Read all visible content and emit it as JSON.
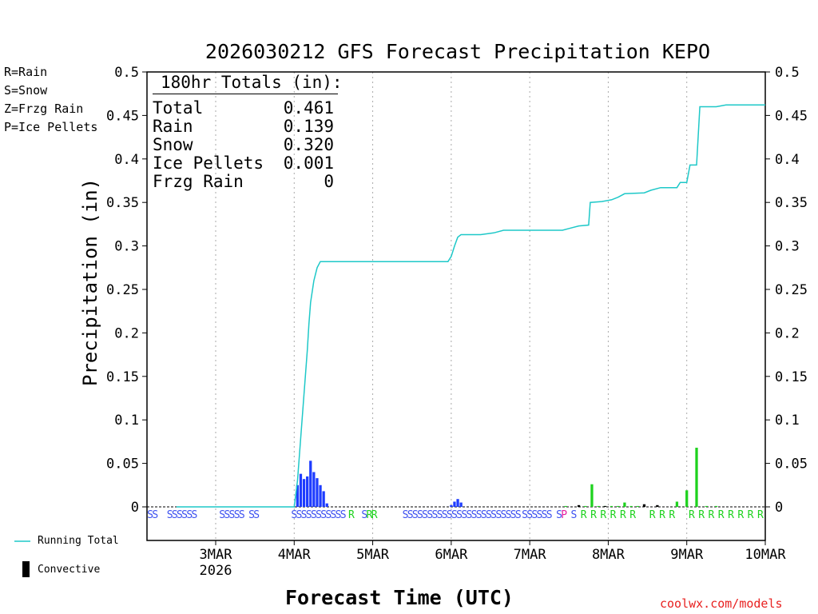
{
  "chart_data": {
    "type": "bar+line",
    "title": "2026030212 GFS Forecast Precipitation KEPO",
    "xlabel": "Forecast Time (UTC)",
    "ylabel": "Precipitation (in)",
    "ylim": [
      0,
      0.5
    ],
    "yticks": [
      "0",
      "0.05",
      "0.1",
      "0.15",
      "0.2",
      "0.25",
      "0.3",
      "0.35",
      "0.4",
      "0.45",
      "0.5"
    ],
    "x_unit": "forecast hour",
    "xlim": [
      -9,
      180
    ],
    "xticks": [
      {
        "hour": 12,
        "label": "3MAR",
        "sublabel": "2026"
      },
      {
        "hour": 36,
        "label": "4MAR"
      },
      {
        "hour": 60,
        "label": "5MAR"
      },
      {
        "hour": 84,
        "label": "6MAR"
      },
      {
        "hour": 108,
        "label": "7MAR"
      },
      {
        "hour": 132,
        "label": "8MAR"
      },
      {
        "hour": 156,
        "label": "9MAR"
      },
      {
        "hour": 180,
        "label": "10MAR"
      }
    ],
    "totals": {
      "header": "180hr Totals (in):",
      "rows": [
        {
          "label": "Total",
          "value": "0.461"
        },
        {
          "label": "Rain",
          "value": "0.139"
        },
        {
          "label": "Snow",
          "value": "0.320"
        },
        {
          "label": "Ice Pellets",
          "value": "0.001"
        },
        {
          "label": "Frzg Rain",
          "value": "0"
        }
      ]
    },
    "ptype_legend": [
      {
        "text": "R=Rain",
        "color": "#1ed21e"
      },
      {
        "text": "S=Snow",
        "color": "#3c50f0"
      },
      {
        "text": "Z=Frzg Rain",
        "color": "#f08c28"
      },
      {
        "text": "P=Ice Pellets",
        "color": "#e61ea0"
      }
    ],
    "series_legend": {
      "running_total": "Running Total",
      "convective": "Convective"
    },
    "colors": {
      "running_total": "#1ec8c8",
      "snow": "#1e3cff",
      "rain": "#1ed21e",
      "convective": "#000000",
      "ice": "#e61ea0"
    },
    "running_total": [
      [
        0,
        0
      ],
      [
        36,
        0
      ],
      [
        37,
        0.03
      ],
      [
        38,
        0.08
      ],
      [
        39,
        0.13
      ],
      [
        40,
        0.18
      ],
      [
        40.5,
        0.21
      ],
      [
        41,
        0.235
      ],
      [
        42,
        0.26
      ],
      [
        43,
        0.275
      ],
      [
        44,
        0.282
      ],
      [
        48,
        0.282
      ],
      [
        83,
        0.282
      ],
      [
        84,
        0.288
      ],
      [
        85,
        0.3
      ],
      [
        86,
        0.31
      ],
      [
        87,
        0.313
      ],
      [
        93,
        0.313
      ],
      [
        97,
        0.315
      ],
      [
        100,
        0.318
      ],
      [
        118,
        0.318
      ],
      [
        120,
        0.32
      ],
      [
        123,
        0.323
      ],
      [
        126,
        0.324
      ],
      [
        126.5,
        0.35
      ],
      [
        130,
        0.351
      ],
      [
        133,
        0.353
      ],
      [
        135,
        0.356
      ],
      [
        137,
        0.36
      ],
      [
        143,
        0.361
      ],
      [
        145,
        0.364
      ],
      [
        148,
        0.367
      ],
      [
        153,
        0.367
      ],
      [
        154,
        0.373
      ],
      [
        156,
        0.373
      ],
      [
        157,
        0.393
      ],
      [
        159,
        0.393
      ],
      [
        160,
        0.46
      ],
      [
        165,
        0.46
      ],
      [
        168,
        0.462
      ],
      [
        180,
        0.462
      ]
    ],
    "bars": {
      "snow": [
        [
          37,
          0.025
        ],
        [
          38,
          0.038
        ],
        [
          39,
          0.032
        ],
        [
          40,
          0.035
        ],
        [
          41,
          0.053
        ],
        [
          42,
          0.04
        ],
        [
          43,
          0.033
        ],
        [
          44,
          0.025
        ],
        [
          45,
          0.018
        ],
        [
          46,
          0.004
        ],
        [
          84,
          0.002
        ],
        [
          85,
          0.006
        ],
        [
          86,
          0.009
        ],
        [
          87,
          0.005
        ]
      ],
      "rain": [
        [
          119,
          0.001
        ],
        [
          123,
          0.001
        ],
        [
          125,
          0.001
        ],
        [
          127,
          0.026
        ],
        [
          129,
          0.001
        ],
        [
          131,
          0.001
        ],
        [
          133,
          0.001
        ],
        [
          135,
          0.001
        ],
        [
          137,
          0.005
        ],
        [
          139,
          0.001
        ],
        [
          141,
          0.001
        ],
        [
          153,
          0.006
        ],
        [
          156,
          0.019
        ],
        [
          159,
          0.068
        ],
        [
          162,
          0.001
        ],
        [
          165,
          0.001
        ]
      ],
      "convective": [
        [
          123,
          0.002
        ],
        [
          131,
          0.001
        ],
        [
          143,
          0.003
        ],
        [
          147,
          0.002
        ]
      ]
    },
    "ptype_markers": [
      {
        "hour": -8.0,
        "letter": "S"
      },
      {
        "hour": -6.5,
        "letter": "S"
      },
      {
        "hour": -2.0,
        "letter": "S"
      },
      {
        "hour": -0.5,
        "letter": "S"
      },
      {
        "hour": 1.0,
        "letter": "S"
      },
      {
        "hour": 2.5,
        "letter": "S"
      },
      {
        "hour": 4.0,
        "letter": "S"
      },
      {
        "hour": 5.5,
        "letter": "S"
      },
      {
        "hour": 14.0,
        "letter": "S"
      },
      {
        "hour": 15.5,
        "letter": "S"
      },
      {
        "hour": 17.0,
        "letter": "S"
      },
      {
        "hour": 18.5,
        "letter": "S"
      },
      {
        "hour": 20.0,
        "letter": "S"
      },
      {
        "hour": 23.0,
        "letter": "S"
      },
      {
        "hour": 24.5,
        "letter": "S"
      },
      {
        "hour": 36.0,
        "letter": "S"
      },
      {
        "hour": 37.5,
        "letter": "S"
      },
      {
        "hour": 39.0,
        "letter": "S"
      },
      {
        "hour": 40.5,
        "letter": "S"
      },
      {
        "hour": 42.0,
        "letter": "S"
      },
      {
        "hour": 43.5,
        "letter": "S"
      },
      {
        "hour": 45.0,
        "letter": "S"
      },
      {
        "hour": 46.5,
        "letter": "S"
      },
      {
        "hour": 48.0,
        "letter": "S"
      },
      {
        "hour": 49.5,
        "letter": "S"
      },
      {
        "hour": 51.0,
        "letter": "S"
      },
      {
        "hour": 53.5,
        "letter": "R"
      },
      {
        "hour": 57.5,
        "letter": "S"
      },
      {
        "hour": 59.0,
        "letter": "R"
      },
      {
        "hour": 60.5,
        "letter": "R"
      },
      {
        "hour": 70.0,
        "letter": "S"
      },
      {
        "hour": 71.5,
        "letter": "S"
      },
      {
        "hour": 73.0,
        "letter": "S"
      },
      {
        "hour": 74.5,
        "letter": "S"
      },
      {
        "hour": 76.0,
        "letter": "S"
      },
      {
        "hour": 77.5,
        "letter": "S"
      },
      {
        "hour": 79.0,
        "letter": "S"
      },
      {
        "hour": 80.5,
        "letter": "S"
      },
      {
        "hour": 82.0,
        "letter": "S"
      },
      {
        "hour": 83.5,
        "letter": "S"
      },
      {
        "hour": 85.0,
        "letter": "S"
      },
      {
        "hour": 86.5,
        "letter": "S"
      },
      {
        "hour": 88.0,
        "letter": "S"
      },
      {
        "hour": 89.5,
        "letter": "S"
      },
      {
        "hour": 91.0,
        "letter": "S"
      },
      {
        "hour": 92.5,
        "letter": "S"
      },
      {
        "hour": 94.0,
        "letter": "S"
      },
      {
        "hour": 95.5,
        "letter": "S"
      },
      {
        "hour": 97.0,
        "letter": "S"
      },
      {
        "hour": 98.5,
        "letter": "S"
      },
      {
        "hour": 100.0,
        "letter": "S"
      },
      {
        "hour": 101.5,
        "letter": "S"
      },
      {
        "hour": 103.0,
        "letter": "S"
      },
      {
        "hour": 104.5,
        "letter": "S"
      },
      {
        "hour": 106.5,
        "letter": "S"
      },
      {
        "hour": 108.0,
        "letter": "S"
      },
      {
        "hour": 109.5,
        "letter": "S"
      },
      {
        "hour": 111.0,
        "letter": "S"
      },
      {
        "hour": 112.5,
        "letter": "S"
      },
      {
        "hour": 114.0,
        "letter": "S"
      },
      {
        "hour": 117.0,
        "letter": "S"
      },
      {
        "hour": 118.5,
        "letter": "P"
      },
      {
        "hour": 121.5,
        "letter": "S"
      },
      {
        "hour": 124.5,
        "letter": "R"
      },
      {
        "hour": 127.5,
        "letter": "R"
      },
      {
        "hour": 130.5,
        "letter": "R"
      },
      {
        "hour": 133.5,
        "letter": "R"
      },
      {
        "hour": 136.5,
        "letter": "R"
      },
      {
        "hour": 139.5,
        "letter": "R"
      },
      {
        "hour": 145.5,
        "letter": "R"
      },
      {
        "hour": 148.5,
        "letter": "R"
      },
      {
        "hour": 151.5,
        "letter": "R"
      },
      {
        "hour": 157.5,
        "letter": "R"
      },
      {
        "hour": 160.5,
        "letter": "R"
      },
      {
        "hour": 163.5,
        "letter": "R"
      },
      {
        "hour": 166.5,
        "letter": "R"
      },
      {
        "hour": 169.5,
        "letter": "R"
      },
      {
        "hour": 172.5,
        "letter": "R"
      },
      {
        "hour": 175.5,
        "letter": "R"
      },
      {
        "hour": 178.5,
        "letter": "R"
      }
    ]
  },
  "watermark": "coolwx.com/models"
}
